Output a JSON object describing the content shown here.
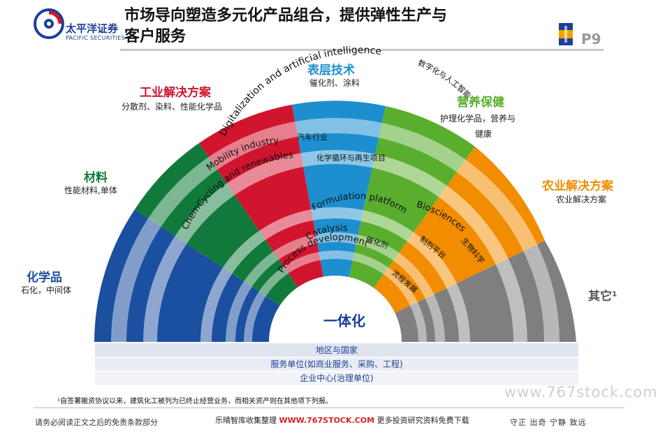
{
  "header": {
    "title_line1": "市场导向塑造多元化产品组合，提供弹性生产与",
    "title_line2": "客户服务",
    "logo_cn": "太平洋证券",
    "logo_en": "PACIFIC SECURITIES",
    "page": "P9"
  },
  "segments": [
    {
      "title": "化学品",
      "sub": "石化，中间体",
      "color": "#1b4fa0"
    },
    {
      "title": "材料",
      "sub": "性能材料,单体",
      "color": "#117a3a"
    },
    {
      "title": "工业解决方案",
      "sub": "分散剂、染料、性能化学品",
      "color": "#d1152f"
    },
    {
      "title": "表层技术",
      "sub": "催化剂、涂料",
      "color": "#1d8fcf"
    },
    {
      "title": "营养保健",
      "sub": "护理化学品，营养与",
      "sub2": "健康",
      "color": "#5aae2e"
    },
    {
      "title": "农业解决方案",
      "sub": "农业解决方案",
      "color": "#f28c00"
    },
    {
      "title": "其它¹",
      "color": "#7f7f7f"
    }
  ],
  "arcs": {
    "digitalization": "Digitalization and artificial intelligence",
    "digitalization_cn": "数字化与人工智能",
    "mobility": "Mobility industry",
    "mobility_cn": "汽车行业",
    "chemcycling": "ChemCycling and renewables",
    "chemcycling_cn": "化学循环与再生项目",
    "formulation": "Formulation platform",
    "formulation_cn": "制剂平台",
    "biosciences": "Biosciences",
    "biosciences_cn": "生物科学",
    "catalysis": "Catalysis",
    "catalysis_cn": "催化剂",
    "process": "Process development",
    "process_cn": "流程发展",
    "center": "一体化"
  },
  "layers": [
    "地区与国家",
    "服务单位(如商业服务、采购、工程)",
    "企业中心(治理单位)"
  ],
  "footnote": "¹自签署搬资协议以来，建筑化工被列为已终止经营业务，而相关资产则在其他项下列报。",
  "footer": {
    "left": "请务必阅读正文之后的免责条款部分",
    "mid_a": "乐晴智库收集整理",
    "mid_url": "WWW.767STOCK.COM",
    "mid_b": "更多投资研究资料免费下载",
    "right": "守正 出奇 宁静 致远",
    "watermark": "www.767stock.com"
  }
}
